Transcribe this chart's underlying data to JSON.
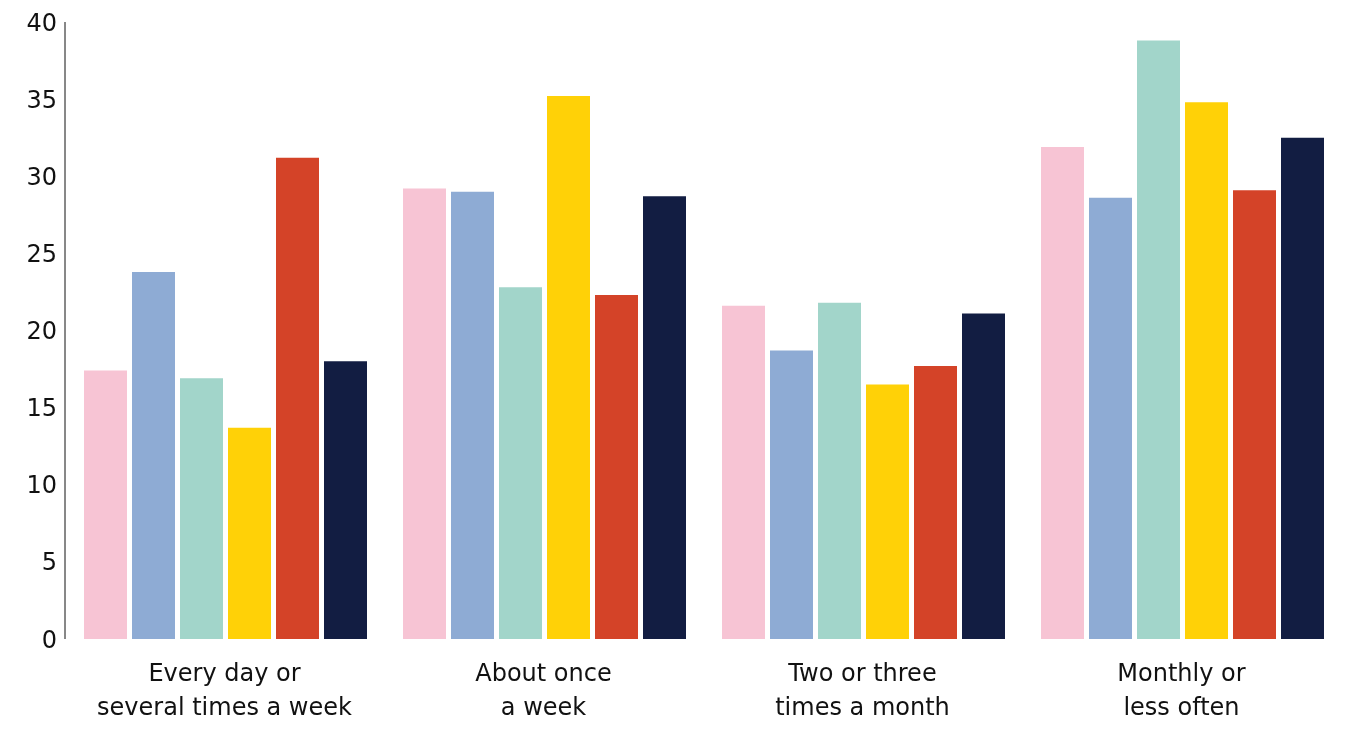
{
  "chart_data": {
    "type": "bar",
    "categories": [
      "Every day or\nseveral times a week",
      "About once\na week",
      "Two or three\ntimes a month",
      "Monthly or\nless often"
    ],
    "series": [
      {
        "color": "#f7c4d4",
        "values": [
          17.4,
          29.2,
          21.6,
          31.9
        ]
      },
      {
        "color": "#8eabd4",
        "values": [
          23.8,
          29.0,
          18.7,
          28.6
        ]
      },
      {
        "color": "#a2d5ca",
        "values": [
          16.9,
          22.8,
          21.8,
          38.8
        ]
      },
      {
        "color": "#ffd107",
        "values": [
          13.7,
          35.2,
          16.5,
          34.8
        ]
      },
      {
        "color": "#d44328",
        "values": [
          31.2,
          22.3,
          17.7,
          29.1
        ]
      },
      {
        "color": "#121d42",
        "values": [
          18.0,
          28.7,
          21.1,
          32.5
        ]
      }
    ],
    "ylim": [
      0,
      40
    ],
    "yticks": [
      0,
      5,
      10,
      15,
      20,
      25,
      30,
      35,
      40
    ],
    "grid": false,
    "legend": false
  }
}
